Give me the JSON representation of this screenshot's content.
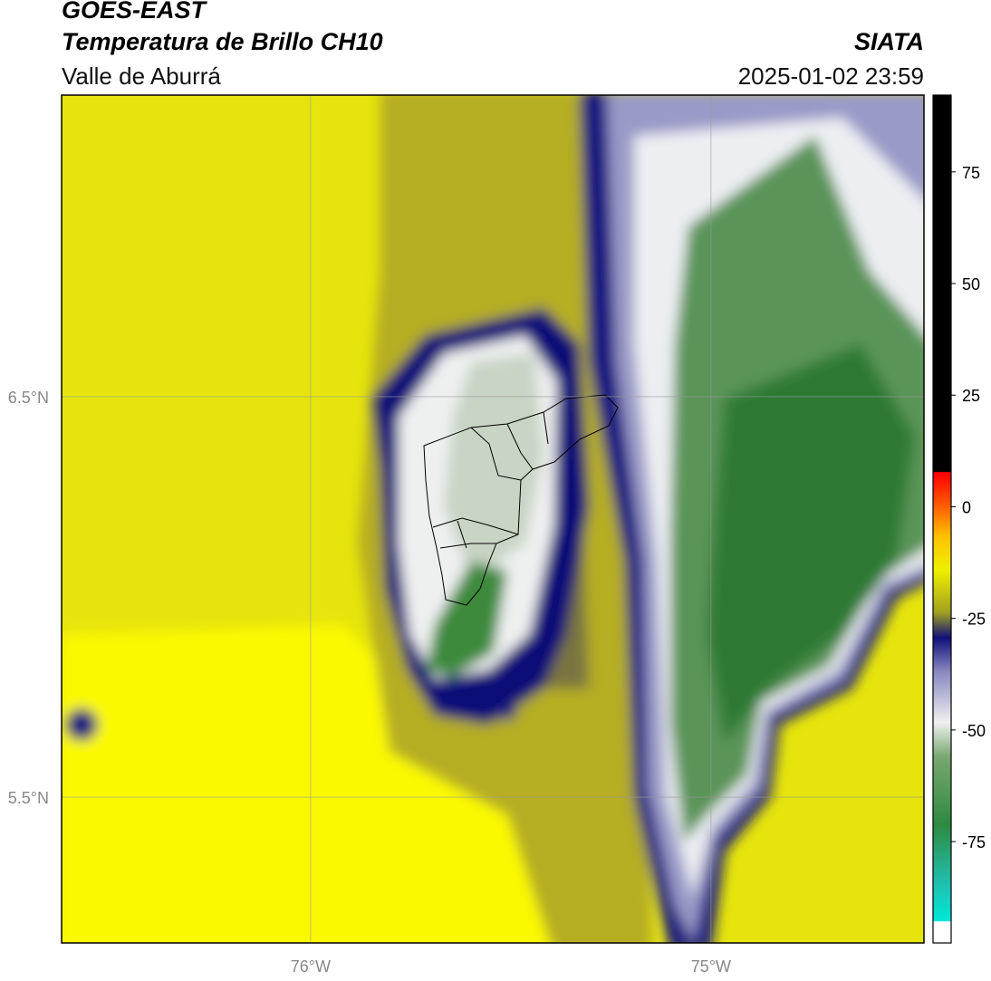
{
  "header": {
    "title": "GOES-EAST",
    "subtitle": "Temperatura de Brillo CH10",
    "region": "Valle de Aburrá",
    "source": "SIATA",
    "datetime": "2025-01-02 23:59"
  },
  "map": {
    "latlim": [
      5.136,
      7.253
    ],
    "lonlim": [
      -76.622,
      -74.468
    ],
    "lat_ticks": [
      {
        "value": 6.5,
        "label": "6.5°N"
      },
      {
        "value": 5.5,
        "label": "5.5°N"
      }
    ],
    "lon_ticks": [
      {
        "value": -76,
        "label": "76°W"
      },
      {
        "value": -75,
        "label": "75°W"
      }
    ]
  },
  "colorbar": {
    "range": [
      -97.7,
      92.2
    ],
    "ticks": [
      75,
      50,
      25,
      0,
      -25,
      -50,
      -75
    ]
  }
}
